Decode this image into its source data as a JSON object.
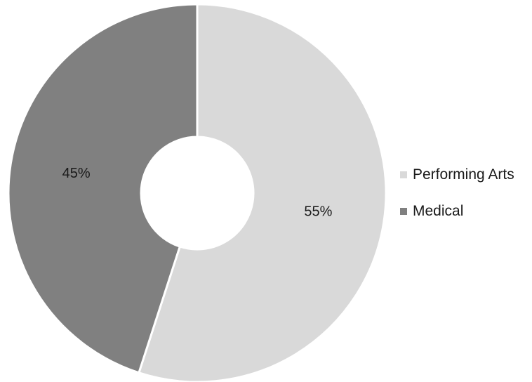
{
  "chart_data": {
    "type": "pie",
    "variant": "donut",
    "categories": [
      "Performing Arts",
      "Medical"
    ],
    "values": [
      55,
      45
    ],
    "data_labels": [
      "55%",
      "45%"
    ],
    "colors": [
      "#d9d9d9",
      "#808080"
    ],
    "legend_position": "right"
  },
  "legend": {
    "items": [
      {
        "label": "Performing Arts",
        "color": "#d9d9d9"
      },
      {
        "label": "Medical",
        "color": "#808080"
      }
    ]
  }
}
